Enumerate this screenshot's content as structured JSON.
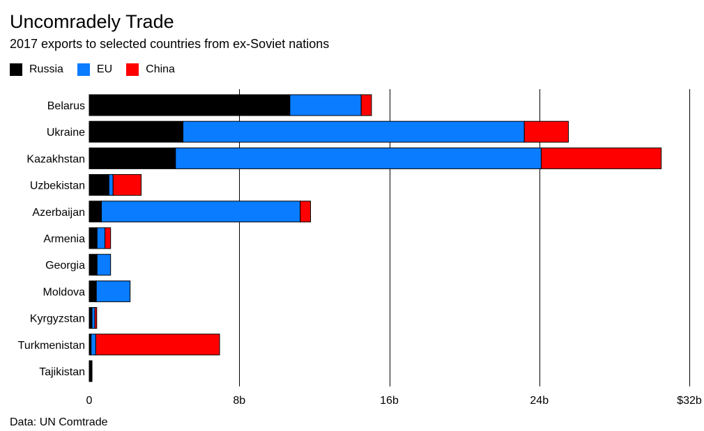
{
  "title": "Uncomradely Trade",
  "subtitle": "2017 exports to selected countries from ex-Soviet nations",
  "source": "Data: UN Comtrade",
  "colors": {
    "Russia": "#000000",
    "EU": "#0a7cff",
    "China": "#ff0000"
  },
  "chart_data": {
    "type": "bar",
    "orientation": "horizontal",
    "stacked": true,
    "categories": [
      "Belarus",
      "Ukraine",
      "Kazakhstan",
      "Uzbekistan",
      "Azerbaijan",
      "Armenia",
      "Georgia",
      "Moldova",
      "Kyrgyzstan",
      "Turkmenistan",
      "Tajikistan"
    ],
    "series": [
      {
        "name": "Russia",
        "values": [
          10.7,
          5.0,
          4.6,
          1.05,
          0.65,
          0.42,
          0.42,
          0.38,
          0.15,
          0.1,
          0.15
        ]
      },
      {
        "name": "EU",
        "values": [
          3.8,
          18.2,
          19.5,
          0.22,
          10.6,
          0.42,
          0.72,
          1.8,
          0.15,
          0.25,
          0.0
        ]
      },
      {
        "name": "China",
        "values": [
          0.55,
          2.35,
          6.4,
          1.5,
          0.55,
          0.3,
          0.0,
          0.0,
          0.1,
          6.6,
          0.0
        ]
      }
    ],
    "xlim": [
      0,
      32
    ],
    "xticks": [
      0,
      8,
      16,
      24,
      32
    ],
    "xtick_labels": [
      "0",
      "8b",
      "16b",
      "24b",
      "$32b"
    ],
    "grid": true,
    "legend": "top-left"
  }
}
